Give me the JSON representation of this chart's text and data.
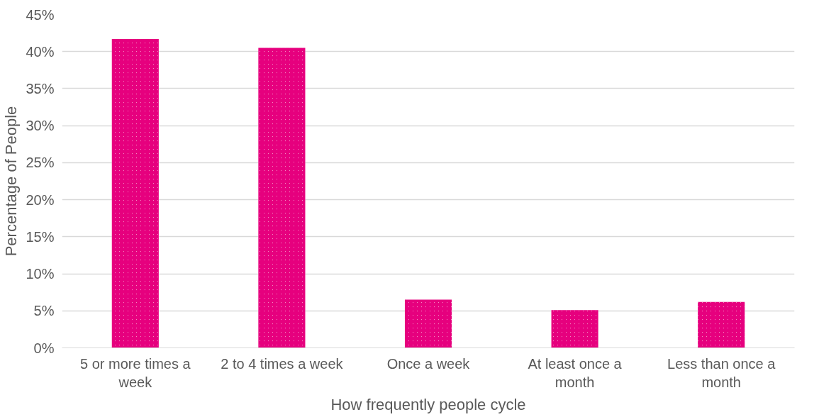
{
  "chart_data": {
    "type": "bar",
    "xlabel": "How frequently people cycle",
    "ylabel": "Percentage of People",
    "categories": [
      "5 or more times a week",
      "2 to 4 times a week",
      "Once a week",
      "At least once a month",
      "Less than once a month"
    ],
    "values": [
      41.7,
      40.5,
      6.5,
      5.1,
      6.2
    ],
    "color": "#e6007e",
    "ylim": [
      0,
      45
    ],
    "yticks": [
      {
        "value": 0,
        "label": "0%"
      },
      {
        "value": 5,
        "label": "5%"
      },
      {
        "value": 10,
        "label": "10%"
      },
      {
        "value": 15,
        "label": "15%"
      },
      {
        "value": 20,
        "label": "20%"
      },
      {
        "value": 25,
        "label": "25%"
      },
      {
        "value": 30,
        "label": "30%"
      },
      {
        "value": 35,
        "label": "35%"
      },
      {
        "value": 40,
        "label": "40%"
      },
      {
        "value": 45,
        "label": "45%"
      }
    ],
    "grid": "y"
  }
}
